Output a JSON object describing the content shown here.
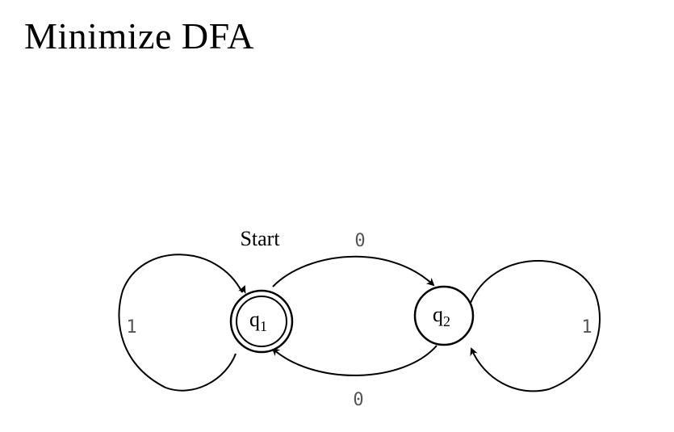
{
  "title": "Minimize DFA",
  "diagram": {
    "start_label": "Start",
    "states": [
      {
        "name": "q",
        "sub": "1",
        "accepting": true,
        "start": true
      },
      {
        "name": "q",
        "sub": "2",
        "accepting": false,
        "start": false
      }
    ],
    "transitions": [
      {
        "from": "q1",
        "to": "q1",
        "symbol": "1"
      },
      {
        "from": "q1",
        "to": "q2",
        "symbol": "0"
      },
      {
        "from": "q2",
        "to": "q1",
        "symbol": "0"
      },
      {
        "from": "q2",
        "to": "q2",
        "symbol": "1"
      }
    ],
    "colors": {
      "stroke": "#000000",
      "label_gray": "#555555"
    }
  }
}
